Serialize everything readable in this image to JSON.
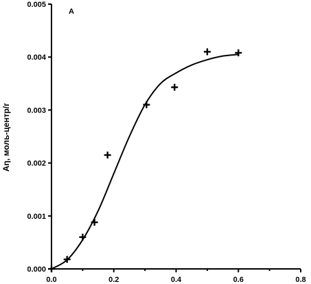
{
  "chart_data": {
    "type": "scatter",
    "panel_label": "A",
    "xlabel": "",
    "ylabel": "Aη, моль-центр/г",
    "xlim": [
      0.0,
      0.8
    ],
    "ylim": [
      0.0,
      0.005
    ],
    "x_ticks": [
      "0.0",
      "0.2",
      "0.4",
      "0.6",
      "0.8"
    ],
    "y_ticks": [
      "0.000",
      "0.001",
      "0.002",
      "0.003",
      "0.004",
      "0.005"
    ],
    "grid": false,
    "series": [
      {
        "kind": "points",
        "marker": "plus",
        "x": [
          0.0,
          0.05,
          0.1,
          0.138,
          0.18,
          0.305,
          0.395,
          0.5,
          0.6
        ],
        "y": [
          0.0,
          0.00018,
          0.0006,
          0.00088,
          0.00215,
          0.0031,
          0.00343,
          0.0041,
          0.00408
        ]
      },
      {
        "kind": "fit-line",
        "x": [
          0.0,
          0.05,
          0.1,
          0.15,
          0.2,
          0.25,
          0.3,
          0.35,
          0.4,
          0.45,
          0.5,
          0.55,
          0.6
        ],
        "y": [
          0.0,
          0.00017,
          0.00055,
          0.0011,
          0.0018,
          0.0025,
          0.0031,
          0.0035,
          0.0037,
          0.00385,
          0.00395,
          0.00402,
          0.00405
        ]
      }
    ]
  }
}
